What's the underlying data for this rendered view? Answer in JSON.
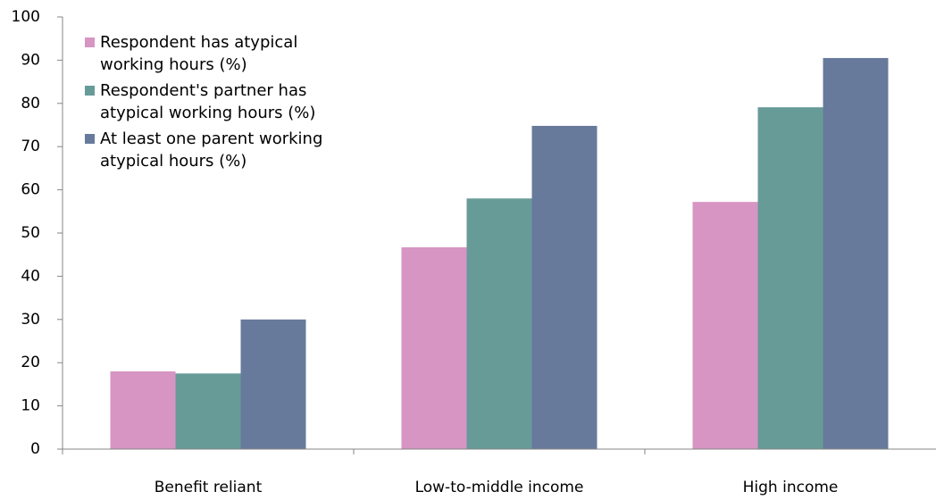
{
  "chart_data": {
    "type": "bar",
    "categories": [
      "Benefit reliant",
      "Low-to-middle income",
      "High income"
    ],
    "series": [
      {
        "name": "Respondent has atypical working hours (%)",
        "color": "#d795c3",
        "values": [
          18,
          46.7,
          57.2
        ]
      },
      {
        "name": "Respondent's partner has atypical working hours (%)",
        "color": "#679b98",
        "values": [
          17.5,
          58,
          79.1
        ]
      },
      {
        "name": "At least one parent working atypical hours (%)",
        "color": "#687a9b",
        "values": [
          30,
          74.8,
          90.5
        ]
      }
    ],
    "ylim": [
      0,
      100
    ],
    "yticks": [
      0,
      10,
      20,
      30,
      40,
      50,
      60,
      70,
      80,
      90,
      100
    ],
    "legend": "upper left"
  }
}
